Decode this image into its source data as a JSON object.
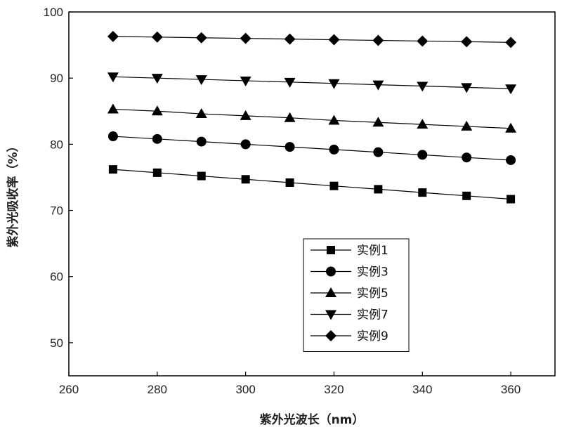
{
  "chart_data": {
    "type": "line",
    "xlabel": "紫外光波长（nm）",
    "ylabel": "紫外光吸收率（%）",
    "xlim": [
      260,
      370
    ],
    "ylim": [
      45,
      100
    ],
    "x_ticks": [
      260,
      280,
      300,
      320,
      340,
      360
    ],
    "y_ticks": [
      50,
      60,
      70,
      80,
      90,
      100
    ],
    "grid": false,
    "legend_position": "bottom-center",
    "x": [
      270,
      280,
      290,
      300,
      310,
      320,
      330,
      340,
      350,
      360
    ],
    "series": [
      {
        "name": "实例1",
        "marker": "square",
        "values": [
          76.2,
          75.7,
          75.2,
          74.7,
          74.2,
          73.7,
          73.2,
          72.7,
          72.2,
          71.7
        ]
      },
      {
        "name": "实例3",
        "marker": "circle",
        "values": [
          81.2,
          80.8,
          80.4,
          80.0,
          79.6,
          79.2,
          78.8,
          78.4,
          78.0,
          77.6
        ]
      },
      {
        "name": "实例5",
        "marker": "triangle-up",
        "values": [
          85.3,
          85.0,
          84.6,
          84.3,
          84.0,
          83.6,
          83.3,
          83.0,
          82.7,
          82.4
        ]
      },
      {
        "name": "实例7",
        "marker": "triangle-down",
        "values": [
          90.2,
          90.0,
          89.8,
          89.6,
          89.4,
          89.2,
          89.0,
          88.8,
          88.6,
          88.4
        ]
      },
      {
        "name": "实例9",
        "marker": "diamond",
        "values": [
          96.3,
          96.2,
          96.1,
          96.0,
          95.9,
          95.8,
          95.7,
          95.6,
          95.5,
          95.4
        ]
      }
    ]
  }
}
